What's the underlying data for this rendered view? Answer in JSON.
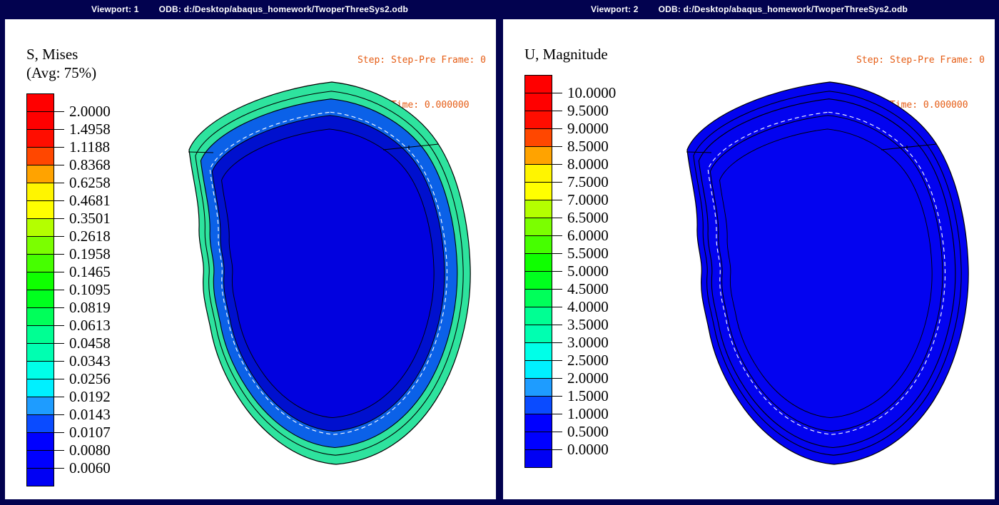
{
  "theme": {
    "frame_color": "#02024f",
    "canvas_color": "#ffffff",
    "title_text_color": "#ffffff",
    "state_text_color": "#e55c14",
    "legend_text_color": "#000000",
    "outline_color": "#000000",
    "dash_color": "#ffffff"
  },
  "spectrum_colors": [
    "#ff0000",
    "#ff0000",
    "#ff0d00",
    "#ff4700",
    "#ffa300",
    "#fff500",
    "#ffff00",
    "#b4ff00",
    "#7bff00",
    "#46ff00",
    "#0fff00",
    "#00ff1e",
    "#00ff5a",
    "#00ff93",
    "#00ffb1",
    "#00ffe8",
    "#00f0ff",
    "#1e9cff",
    "#0a4bff",
    "#0000ff",
    "#0000ff",
    "#0000f4"
  ],
  "viewports": [
    {
      "title": {
        "viewport": "Viewport: 1",
        "odb": "ODB: d:/Desktop/abaqus_homework/TwoperThreeSys2.odb"
      },
      "state": {
        "line1": "Step: Step-Pre Frame: 0",
        "line2": "Total Time: 0.000000"
      },
      "legend": {
        "title": "S, Mises",
        "subtitle": "(Avg: 75%)",
        "labels": [
          "2.0000",
          "1.4958",
          "1.1188",
          "0.8368",
          "0.6258",
          "0.4681",
          "0.3501",
          "0.2618",
          "0.1958",
          "0.1465",
          "0.1095",
          "0.0819",
          "0.0613",
          "0.0458",
          "0.0343",
          "0.0256",
          "0.0192",
          "0.0143",
          "0.0107",
          "0.0080",
          "0.0060"
        ]
      }
    },
    {
      "title": {
        "viewport": "Viewport: 2",
        "odb": "ODB: d:/Desktop/abaqus_homework/TwoperThreeSys2.odb"
      },
      "state": {
        "line1": "Step: Step-Pre Frame: 0",
        "line2": "Total Time: 0.000000"
      },
      "legend": {
        "title": "U, Magnitude",
        "subtitle": "",
        "labels": [
          "10.0000",
          "9.5000",
          "9.0000",
          "8.5000",
          "8.0000",
          "7.5000",
          "7.0000",
          "6.5000",
          "6.0000",
          "5.5000",
          "5.0000",
          "4.5000",
          "4.0000",
          "3.5000",
          "3.0000",
          "2.5000",
          "2.0000",
          "1.5000",
          "1.0000",
          "0.5000",
          "0.0000"
        ]
      }
    }
  ],
  "models": {
    "left": {
      "outer_fill": "#2ee39e",
      "mid_fill": "#0b61e8",
      "band_fill": "#0010ce",
      "inner_fill": "#0101df"
    },
    "right": {
      "outer_fill": "#0303f0",
      "mid_fill": "#0303f0",
      "band_fill": "#0303f0",
      "inner_fill": "#0303f0"
    }
  }
}
